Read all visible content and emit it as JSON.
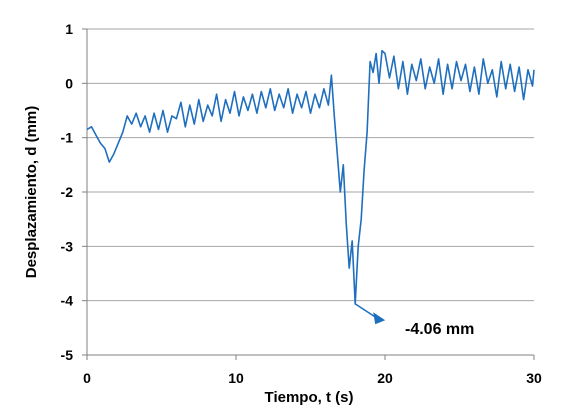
{
  "chart_data": {
    "type": "line",
    "xlabel": "Tiempo, t (s)",
    "ylabel": "Desplazamiento, d (mm)",
    "xlim": [
      0,
      30
    ],
    "ylim": [
      -5,
      1
    ],
    "xticks": [
      "0",
      "10",
      "20",
      "30"
    ],
    "yticks": [
      "1",
      "0",
      "-1",
      "-2",
      "-3",
      "-4",
      "-5"
    ],
    "grid": "horizontal",
    "series_color": "#1f6fbf",
    "annotation": {
      "text": "-4.06 mm",
      "x": 18.0,
      "y": -4.06,
      "label_x": 20.0,
      "label_y": -4.5
    },
    "series": [
      {
        "x": [
          0,
          0.3,
          0.6,
          0.9,
          1.2,
          1.5,
          1.8,
          2.1,
          2.4,
          2.7,
          3.0,
          3.3,
          3.6,
          3.9,
          4.2,
          4.5,
          4.8,
          5.1,
          5.4,
          5.7,
          6.0,
          6.3,
          6.6,
          6.9,
          7.2,
          7.5,
          7.8,
          8.1,
          8.4,
          8.7,
          9.0,
          9.3,
          9.6,
          9.9,
          10.2,
          10.5,
          10.8,
          11.1,
          11.4,
          11.7,
          12.0,
          12.3,
          12.6,
          12.9,
          13.2,
          13.5,
          13.8,
          14.1,
          14.4,
          14.7,
          15.0,
          15.3,
          15.6,
          15.9,
          16.2,
          16.4,
          16.6,
          16.8,
          17.0,
          17.2,
          17.4,
          17.6,
          17.8,
          18.0,
          18.2,
          18.4,
          18.6,
          18.8,
          19.0,
          19.2,
          19.4,
          19.6,
          19.8,
          20.0,
          20.3,
          20.6,
          20.9,
          21.2,
          21.5,
          21.8,
          22.1,
          22.4,
          22.7,
          23.0,
          23.3,
          23.6,
          23.9,
          24.2,
          24.5,
          24.8,
          25.1,
          25.4,
          25.7,
          26.0,
          26.3,
          26.6,
          26.9,
          27.2,
          27.5,
          27.8,
          28.1,
          28.4,
          28.7,
          29.0,
          29.3,
          29.6,
          29.9,
          30.0
        ],
        "y": [
          -0.85,
          -0.8,
          -0.95,
          -1.1,
          -1.2,
          -1.45,
          -1.3,
          -1.1,
          -0.9,
          -0.6,
          -0.75,
          -0.55,
          -0.8,
          -0.6,
          -0.9,
          -0.55,
          -0.85,
          -0.5,
          -0.9,
          -0.6,
          -0.65,
          -0.35,
          -0.8,
          -0.4,
          -0.75,
          -0.3,
          -0.7,
          -0.4,
          -0.6,
          -0.2,
          -0.7,
          -0.3,
          -0.55,
          -0.15,
          -0.6,
          -0.25,
          -0.5,
          -0.2,
          -0.55,
          -0.15,
          -0.45,
          -0.1,
          -0.5,
          -0.2,
          -0.45,
          -0.1,
          -0.55,
          -0.2,
          -0.45,
          -0.15,
          -0.55,
          -0.2,
          -0.45,
          -0.1,
          -0.4,
          0.15,
          -0.6,
          -1.3,
          -2.0,
          -1.5,
          -2.6,
          -3.4,
          -2.9,
          -4.06,
          -3.0,
          -2.5,
          -1.6,
          -0.9,
          0.4,
          0.2,
          0.55,
          0.0,
          0.6,
          0.55,
          0.1,
          0.5,
          -0.1,
          0.4,
          -0.2,
          0.35,
          0.05,
          0.45,
          -0.1,
          0.3,
          0.0,
          0.45,
          -0.2,
          0.35,
          -0.1,
          0.4,
          0.05,
          0.35,
          -0.15,
          0.3,
          -0.2,
          0.45,
          0.0,
          0.25,
          -0.25,
          0.4,
          -0.1,
          0.35,
          -0.15,
          0.3,
          -0.3,
          0.25,
          -0.05,
          0.25
        ]
      }
    ]
  }
}
